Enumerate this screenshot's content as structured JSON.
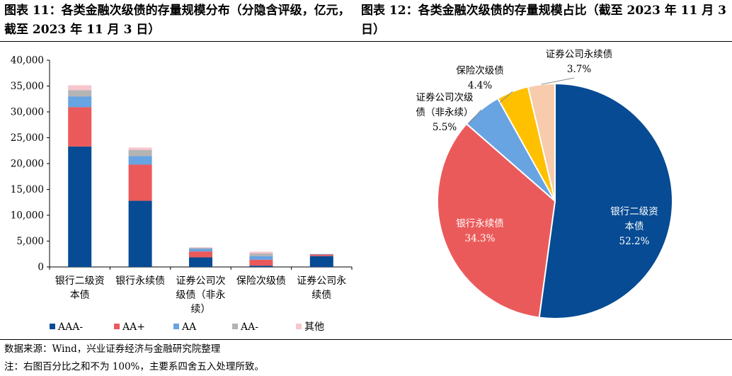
{
  "titles": {
    "left": "图表 11：各类金融次级债的存量规模分布（分隐含评级，亿元，截至 2023 年 11 月 3 日）",
    "right": "图表 12：各类金融次级债的存量规模占比（截至 2023 年 11 月 3 日）"
  },
  "notes": {
    "source": "数据来源：Wind，兴业证券经济与金融研究院整理",
    "footnote": "注：右图百分比之和不为 100%，主要系四舍五入处理所致。"
  },
  "colors": {
    "AAA-": "#064B93",
    "AA+": "#EB5A5A",
    "AA": "#68A3E2",
    "AA-": "#B4B4B4",
    "other": "#F8C5CC",
    "pie_yellow": "#FFC000",
    "pie_peach": "#F8CBAD"
  },
  "chart_data": [
    {
      "type": "bar",
      "stacked": true,
      "categories": [
        [
          "银行二级资",
          "本债"
        ],
        [
          "银行永续债"
        ],
        [
          "证券公司次",
          "级债（非永",
          "续）"
        ],
        [
          "保险次级债"
        ],
        [
          "证券公司永",
          "续债"
        ]
      ],
      "series": [
        {
          "name": "AAA-",
          "color_key": "AAA-",
          "values": [
            23300,
            12800,
            1850,
            250,
            2100
          ]
        },
        {
          "name": "AA+",
          "color_key": "AA+",
          "values": [
            7600,
            7000,
            1150,
            1150,
            300
          ]
        },
        {
          "name": "AA",
          "color_key": "AA",
          "values": [
            2100,
            1650,
            500,
            700,
            100
          ]
        },
        {
          "name": "AA-",
          "color_key": "AA-",
          "values": [
            1200,
            1200,
            200,
            500,
            0
          ]
        },
        {
          "name": "其他",
          "color_key": "other",
          "values": [
            950,
            450,
            100,
            350,
            0
          ]
        }
      ],
      "ylim": [
        0,
        40000
      ],
      "yticks": [
        "0",
        "5,000",
        "10,000",
        "15,000",
        "20,000",
        "25,000",
        "30,000",
        "35,000",
        "40,000"
      ],
      "ytick_values": [
        0,
        5000,
        10000,
        15000,
        20000,
        25000,
        30000,
        35000,
        40000
      ],
      "grid": false,
      "legend_position": "bottom"
    },
    {
      "type": "pie",
      "start": "top",
      "direction": "clockwise",
      "slices": [
        {
          "label": [
            "银行二级资",
            "本债"
          ],
          "value": 52.2,
          "text": "52.2%",
          "color_key": "AAA-",
          "label_inside": true
        },
        {
          "label": [
            "银行永续债"
          ],
          "value": 34.3,
          "text": "34.3%",
          "color_key": "AA+",
          "label_inside": true
        },
        {
          "label": [
            "证券公司次级",
            "债（非永续）"
          ],
          "value": 5.5,
          "text": "5.5%",
          "color_key": "AA",
          "label_inside": false
        },
        {
          "label": [
            "保险次级债"
          ],
          "value": 4.4,
          "text": "4.4%",
          "color_key": "pie_yellow",
          "label_inside": false
        },
        {
          "label": [
            "证券公司永续债"
          ],
          "value": 3.7,
          "text": "3.7%",
          "color_key": "pie_peach",
          "label_inside": false
        }
      ]
    }
  ]
}
